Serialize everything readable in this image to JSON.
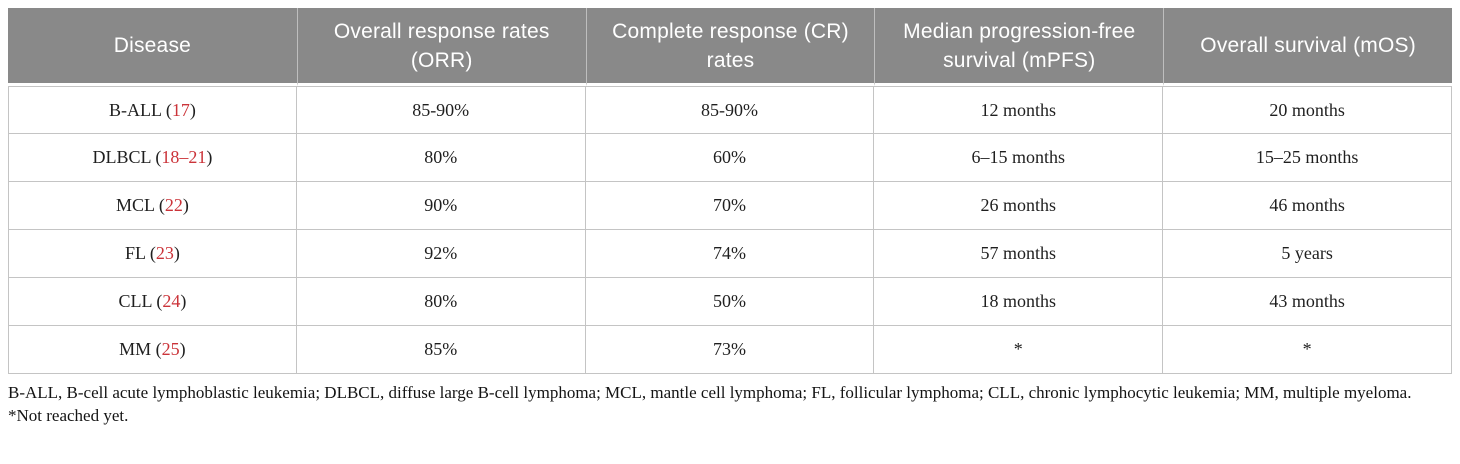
{
  "colors": {
    "header_bg": "#898989",
    "header_text": "#ffffff",
    "body_text": "#1f1f1f",
    "citation": "#cb3339",
    "border": "#c4c4c4",
    "page_bg": "#ffffff"
  },
  "table": {
    "columns": [
      "Disease",
      "Overall response rates (ORR)",
      "Complete response (CR) rates",
      "Median progression-free survival (mPFS)",
      "Overall survival (mOS)"
    ],
    "citation_format": {
      "prefix": " (",
      "suffix": ")"
    },
    "rows": [
      {
        "disease": "B-ALL",
        "ref": "17",
        "orr": "85-90%",
        "cr": "85-90%",
        "mpfs": "12 months",
        "mos": "20 months"
      },
      {
        "disease": "DLBCL",
        "ref": "18–21",
        "orr": "80%",
        "cr": "60%",
        "mpfs": "6–15 months",
        "mos": "15–25 months"
      },
      {
        "disease": "MCL",
        "ref": "22",
        "orr": "90%",
        "cr": "70%",
        "mpfs": "26 months",
        "mos": "46 months"
      },
      {
        "disease": "FL",
        "ref": "23",
        "orr": "92%",
        "cr": "74%",
        "mpfs": "57 months",
        "mos": "5 years"
      },
      {
        "disease": "CLL",
        "ref": "24",
        "orr": "80%",
        "cr": "50%",
        "mpfs": "18 months",
        "mos": "43 months"
      },
      {
        "disease": "MM",
        "ref": "25",
        "orr": "85%",
        "cr": "73%",
        "mpfs": "*",
        "mos": "*"
      }
    ]
  },
  "footnotes": {
    "abbreviations": "B-ALL, B-cell acute lymphoblastic leukemia; DLBCL, diffuse large B-cell lymphoma; MCL, mantle cell lymphoma; FL, follicular lymphoma; CLL, chronic lymphocytic leukemia; MM, multiple myeloma.",
    "asterisk": "*Not reached yet."
  }
}
